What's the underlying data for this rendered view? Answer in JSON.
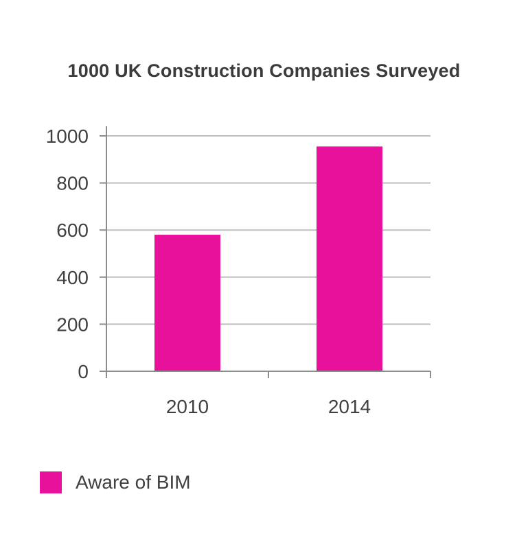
{
  "chart_data": {
    "type": "bar",
    "title": "1000 UK Construction Companies Surveyed",
    "categories": [
      "2010",
      "2014"
    ],
    "series": [
      {
        "name": "Aware of BIM",
        "values": [
          580,
          955
        ],
        "color": "#e8119b"
      }
    ],
    "yticks": [
      "0",
      "200",
      "400",
      "600",
      "800",
      "1000"
    ],
    "ylim": [
      0,
      1000
    ],
    "xlabel": "",
    "ylabel": "",
    "grid": true,
    "legend_position": "bottom-left"
  },
  "colors": {
    "bar": "#e8119b",
    "grid": "#bfbfbf",
    "axis": "#8c8c8c",
    "text": "#404040"
  }
}
